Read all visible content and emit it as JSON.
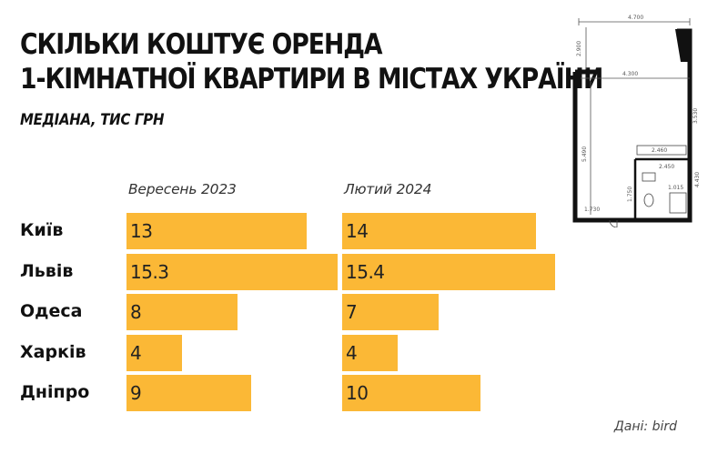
{
  "title_line1": "СКІЛЬКИ КОШТУЄ ОРЕНДА",
  "title_line2": "1-КІМНАТНОЇ КВАРТИРИ В МІСТАХ УКРАЇНИ",
  "subtitle": "МЕДІАНА, ТИС ГРН",
  "source": "Дані: bird",
  "colors": {
    "bar": "#fbb836",
    "text": "#111111"
  },
  "floorplan": {
    "icon": "apartment-floorplan-icon",
    "dims": [
      "4.700",
      "2.900",
      "4.300",
      "3.530",
      "5.490",
      "2.460",
      "2.450",
      "1.750",
      "4.430",
      "1.015",
      "1.730"
    ]
  },
  "chart_data": {
    "type": "bar",
    "subtitle": "МЕДІАНА, ТИС ГРН",
    "categories": [
      "Київ",
      "Львів",
      "Одеса",
      "Харків",
      "Дніпро"
    ],
    "series": [
      {
        "name": "Вересень 2023",
        "values": [
          13,
          15.3,
          8,
          4,
          9
        ],
        "labels": [
          "13",
          "15.3",
          "8",
          "4",
          "9"
        ]
      },
      {
        "name": "Лютий 2024",
        "values": [
          14,
          15.4,
          7,
          4,
          10
        ],
        "labels": [
          "14",
          "15.4",
          "7",
          "4",
          "10"
        ]
      }
    ]
  }
}
